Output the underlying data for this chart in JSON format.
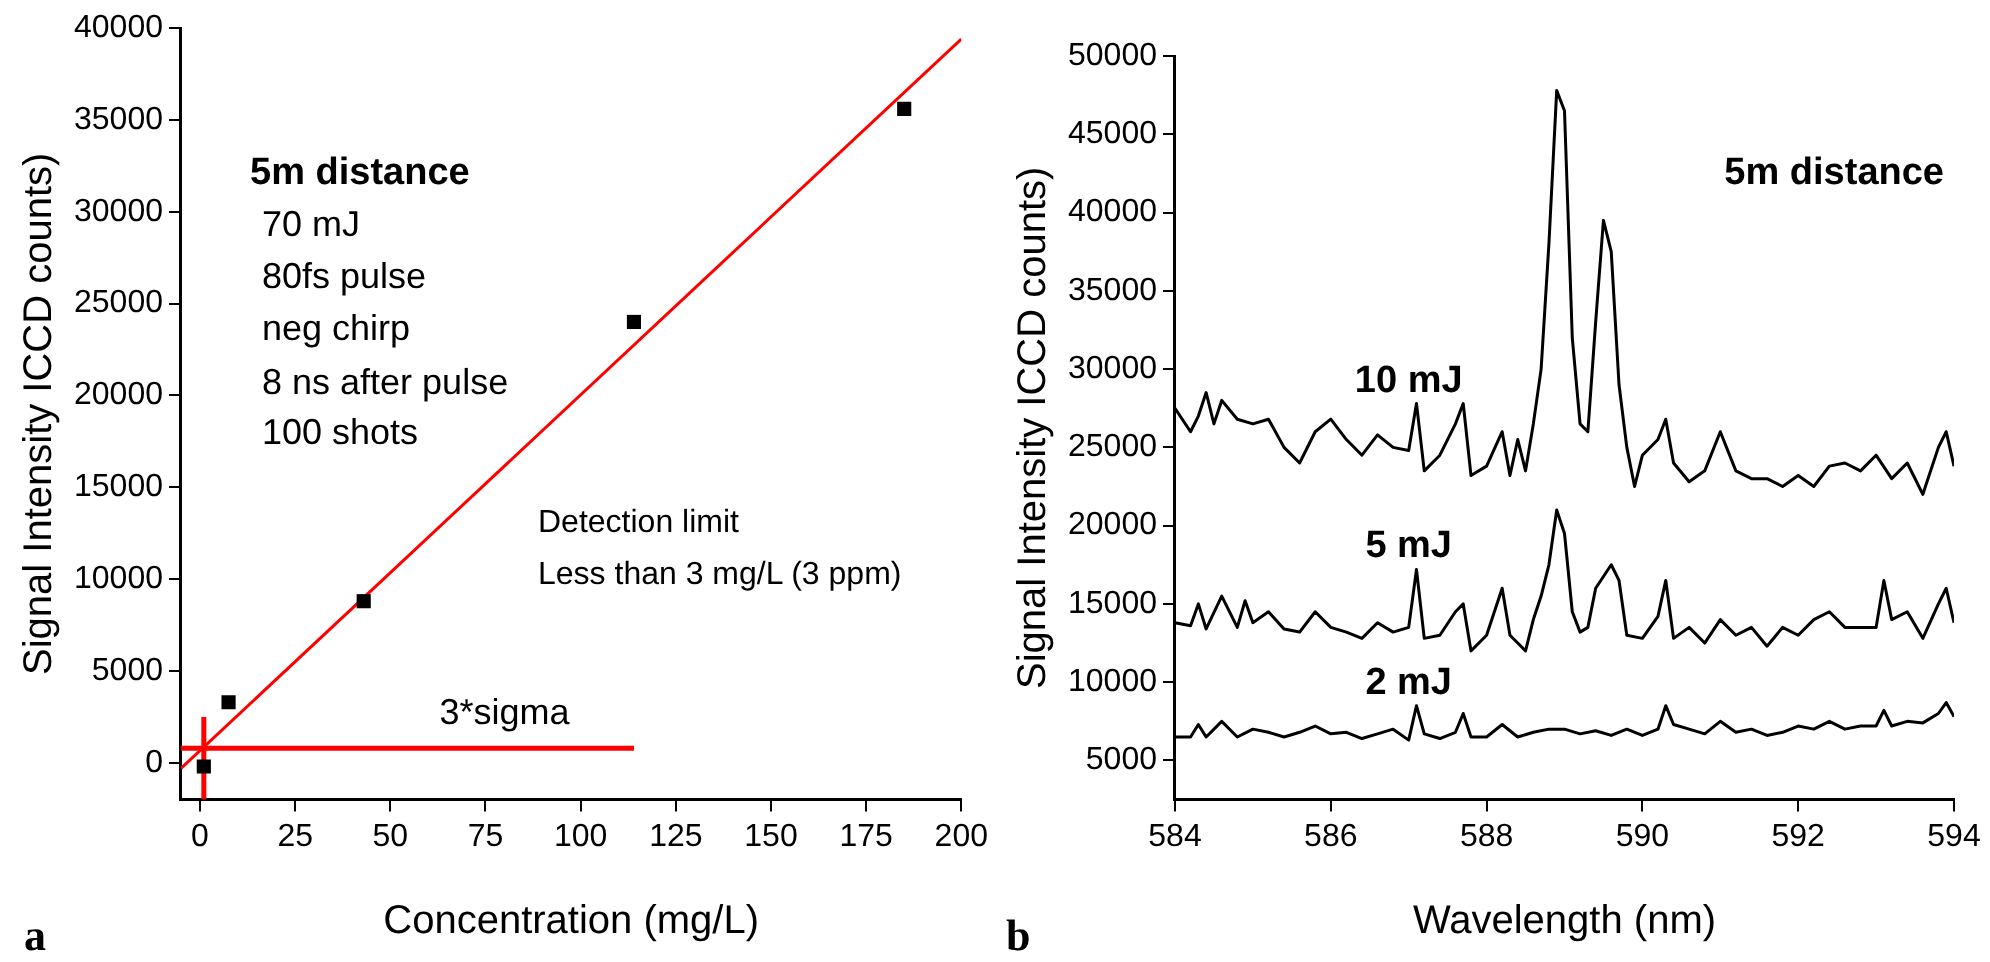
{
  "chart_data": [
    {
      "type": "scatter",
      "xlabel": "Concentration (mg/L)",
      "ylabel": "Signal Intensity ICCD counts)",
      "xlim": [
        -5,
        200
      ],
      "xticks": [
        0,
        25,
        50,
        75,
        100,
        125,
        150,
        175,
        200
      ],
      "ylim": [
        -2000,
        40000
      ],
      "yticks": [
        0,
        5000,
        10000,
        15000,
        20000,
        25000,
        30000,
        35000,
        40000
      ],
      "legend": false,
      "series": [
        {
          "marker": "square",
          "color": "#000000",
          "x": [
            1,
            7.5,
            43,
            114,
            185
          ],
          "values": [
            -200,
            3300,
            8800,
            24000,
            35600
          ]
        },
        {
          "type": "line",
          "marker": "none",
          "color": "#ff0000",
          "x": [
            -5,
            200
          ],
          "values": [
            -300,
            39400
          ]
        },
        {
          "type": "line",
          "marker": "none",
          "color": "#ff0000",
          "x": [
            -5,
            114
          ],
          "values": [
            800,
            800
          ]
        },
        {
          "type": "line",
          "marker": "none",
          "color": "#ff0000",
          "x": [
            1,
            1
          ],
          "values": [
            -2000,
            2500
          ]
        }
      ],
      "annotations": [
        "5m distance",
        "70 mJ",
        "80fs pulse",
        "neg chirp",
        "8 ns after pulse",
        "100 shots",
        "Detection limit",
        "Less than 3 mg/L (3 ppm)",
        {
          "text": "3*sigma",
          "x": 80,
          "y": 800
        },
        "a"
      ]
    },
    {
      "type": "line",
      "xlabel": "Wavelength (nm)",
      "ylabel": "Signal Intensity ICCD counts)",
      "xlim": [
        584,
        594
      ],
      "xticks": [
        584,
        586,
        588,
        590,
        592,
        594
      ],
      "ylim": [
        2500,
        50000
      ],
      "yticks": [
        5000,
        10000,
        15000,
        20000,
        25000,
        30000,
        35000,
        40000,
        45000,
        50000
      ],
      "legend": false,
      "series": [
        {
          "name": "10 mJ",
          "color": "#000000",
          "x": [
            584.0,
            584.2,
            584.3,
            584.4,
            584.5,
            584.6,
            584.8,
            585.0,
            585.2,
            585.4,
            585.6,
            585.8,
            586.0,
            586.2,
            586.4,
            586.6,
            586.8,
            587.0,
            587.1,
            587.2,
            587.4,
            587.6,
            587.7,
            587.8,
            588.0,
            588.2,
            588.3,
            588.4,
            588.5,
            588.6,
            588.7,
            588.8,
            588.9,
            589.0,
            589.1,
            589.2,
            589.3,
            589.4,
            589.5,
            589.6,
            589.7,
            589.8,
            589.9,
            590.0,
            590.2,
            590.3,
            590.4,
            590.6,
            590.8,
            591.0,
            591.2,
            591.4,
            591.6,
            591.8,
            592.0,
            592.2,
            592.4,
            592.6,
            592.8,
            593.0,
            593.2,
            593.4,
            593.6,
            593.8,
            593.9,
            594.0
          ],
          "values": [
            27500,
            26000,
            27000,
            28500,
            26500,
            28000,
            26800,
            26500,
            26800,
            25000,
            24000,
            26000,
            26800,
            25500,
            24500,
            25800,
            25000,
            24800,
            27800,
            23500,
            24500,
            26500,
            27800,
            23200,
            23800,
            26000,
            23200,
            25500,
            23500,
            26500,
            30000,
            38000,
            47800,
            46500,
            32000,
            26500,
            26000,
            33000,
            39500,
            37500,
            29000,
            25000,
            22500,
            24500,
            25500,
            26800,
            24000,
            22800,
            23500,
            26000,
            23500,
            23000,
            23000,
            22500,
            23200,
            22500,
            23800,
            24000,
            23500,
            24500,
            23000,
            24000,
            22000,
            25000,
            26000,
            23800
          ]
        },
        {
          "name": "5 mJ",
          "color": "#000000",
          "x": [
            584.0,
            584.2,
            584.3,
            584.4,
            584.6,
            584.8,
            584.9,
            585.0,
            585.2,
            585.4,
            585.6,
            585.8,
            586.0,
            586.2,
            586.4,
            586.6,
            586.8,
            587.0,
            587.1,
            587.2,
            587.4,
            587.6,
            587.7,
            587.8,
            588.0,
            588.2,
            588.3,
            588.4,
            588.5,
            588.6,
            588.7,
            588.8,
            588.9,
            589.0,
            589.1,
            589.2,
            589.3,
            589.4,
            589.6,
            589.7,
            589.8,
            590.0,
            590.2,
            590.3,
            590.4,
            590.6,
            590.8,
            591.0,
            591.2,
            591.4,
            591.6,
            591.8,
            592.0,
            592.2,
            592.4,
            592.6,
            592.8,
            593.0,
            593.1,
            593.2,
            593.4,
            593.6,
            593.8,
            593.9,
            594.0
          ],
          "values": [
            13800,
            13600,
            15000,
            13400,
            15500,
            13500,
            15200,
            13800,
            14500,
            13400,
            13200,
            14500,
            13500,
            13200,
            12800,
            13800,
            13200,
            13500,
            17200,
            12800,
            13000,
            14500,
            15000,
            12000,
            13000,
            16000,
            13000,
            12500,
            12000,
            14000,
            15500,
            17500,
            21000,
            19500,
            14500,
            13200,
            13500,
            16000,
            17500,
            16500,
            13000,
            12800,
            14200,
            16500,
            12800,
            13500,
            12500,
            14000,
            13000,
            13500,
            12300,
            13500,
            13000,
            14000,
            14500,
            13500,
            13500,
            13500,
            16500,
            14000,
            14500,
            12800,
            15000,
            16000,
            13800
          ]
        },
        {
          "name": "2 mJ",
          "color": "#000000",
          "x": [
            584.0,
            584.2,
            584.3,
            584.4,
            584.6,
            584.8,
            585.0,
            585.2,
            585.4,
            585.6,
            585.8,
            586.0,
            586.2,
            586.4,
            586.6,
            586.8,
            587.0,
            587.1,
            587.2,
            587.4,
            587.6,
            587.7,
            587.8,
            588.0,
            588.2,
            588.4,
            588.6,
            588.8,
            589.0,
            589.2,
            589.4,
            589.6,
            589.8,
            590.0,
            590.2,
            590.3,
            590.4,
            590.6,
            590.8,
            591.0,
            591.2,
            591.4,
            591.6,
            591.8,
            592.0,
            592.2,
            592.4,
            592.6,
            592.8,
            593.0,
            593.1,
            593.2,
            593.4,
            593.6,
            593.8,
            593.9,
            594.0
          ],
          "values": [
            6500,
            6500,
            7300,
            6500,
            7500,
            6500,
            7000,
            6800,
            6500,
            6800,
            7200,
            6700,
            6800,
            6400,
            6700,
            7000,
            6300,
            8500,
            6700,
            6400,
            6800,
            8000,
            6500,
            6500,
            7300,
            6500,
            6800,
            7000,
            7000,
            6700,
            6900,
            6600,
            7000,
            6600,
            7000,
            8500,
            7300,
            7000,
            6700,
            7500,
            6800,
            7000,
            6600,
            6800,
            7200,
            7000,
            7500,
            7000,
            7200,
            7200,
            8200,
            7200,
            7500,
            7400,
            8000,
            8700,
            7800
          ]
        }
      ],
      "annotations": [
        "5m distance",
        "b"
      ]
    }
  ]
}
